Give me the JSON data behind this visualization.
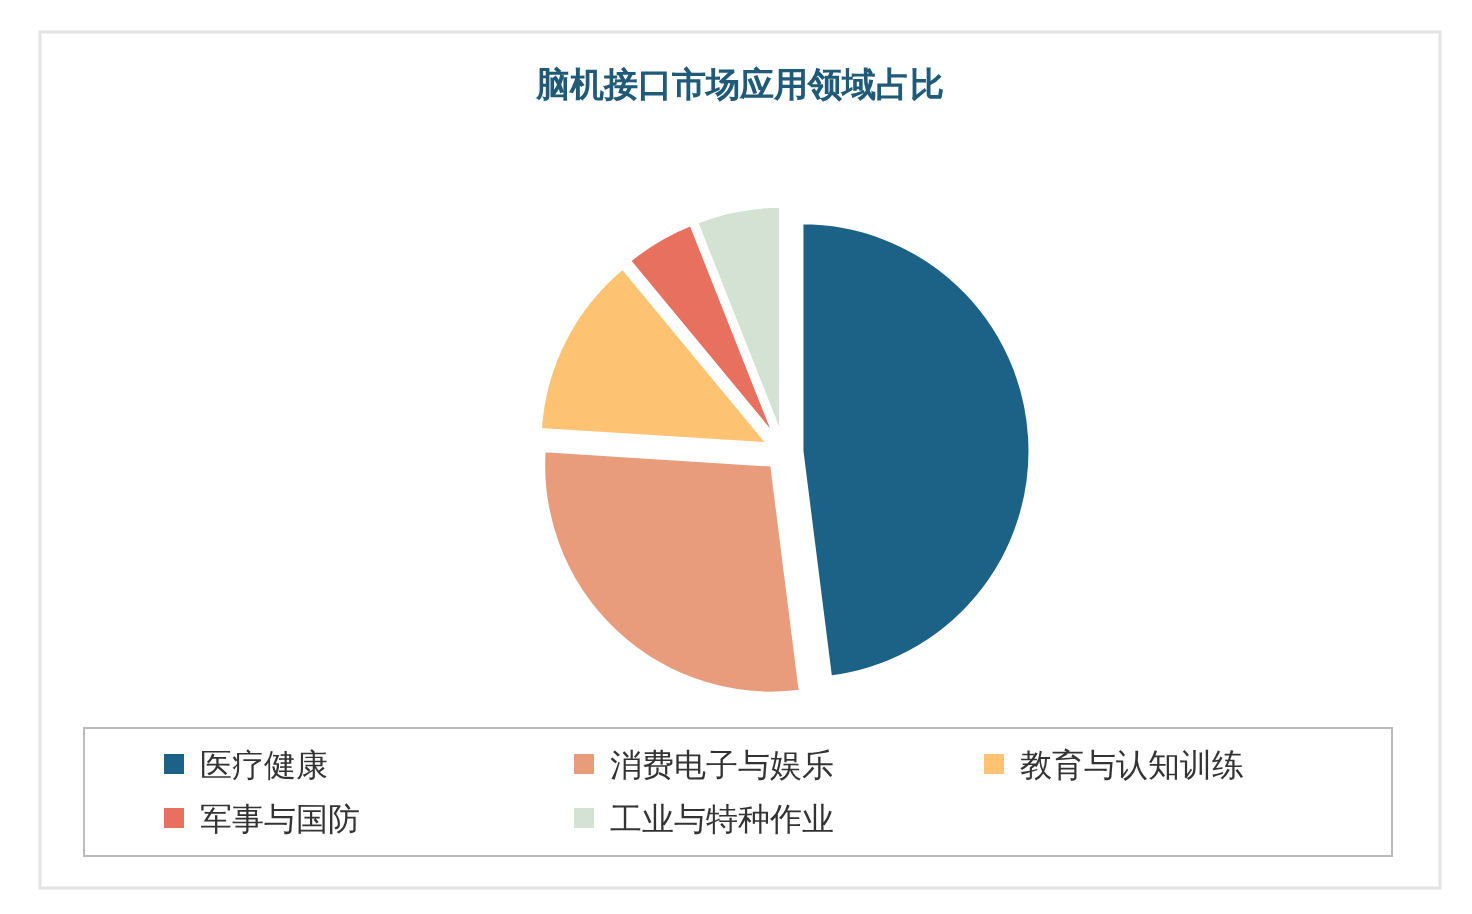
{
  "chart_data": {
    "type": "pie",
    "title": "脑机接口市场应用领域占比",
    "categories": [
      "医疗健康",
      "消费电子与娱乐",
      "教育与认知训练",
      "军事与国防",
      "工业与特种作业"
    ],
    "values": [
      48,
      28,
      13,
      5,
      6
    ],
    "colors": [
      "#1b6286",
      "#e89c7c",
      "#fdc272",
      "#e8705f",
      "#d3e2d3"
    ],
    "legend": "bottom"
  }
}
